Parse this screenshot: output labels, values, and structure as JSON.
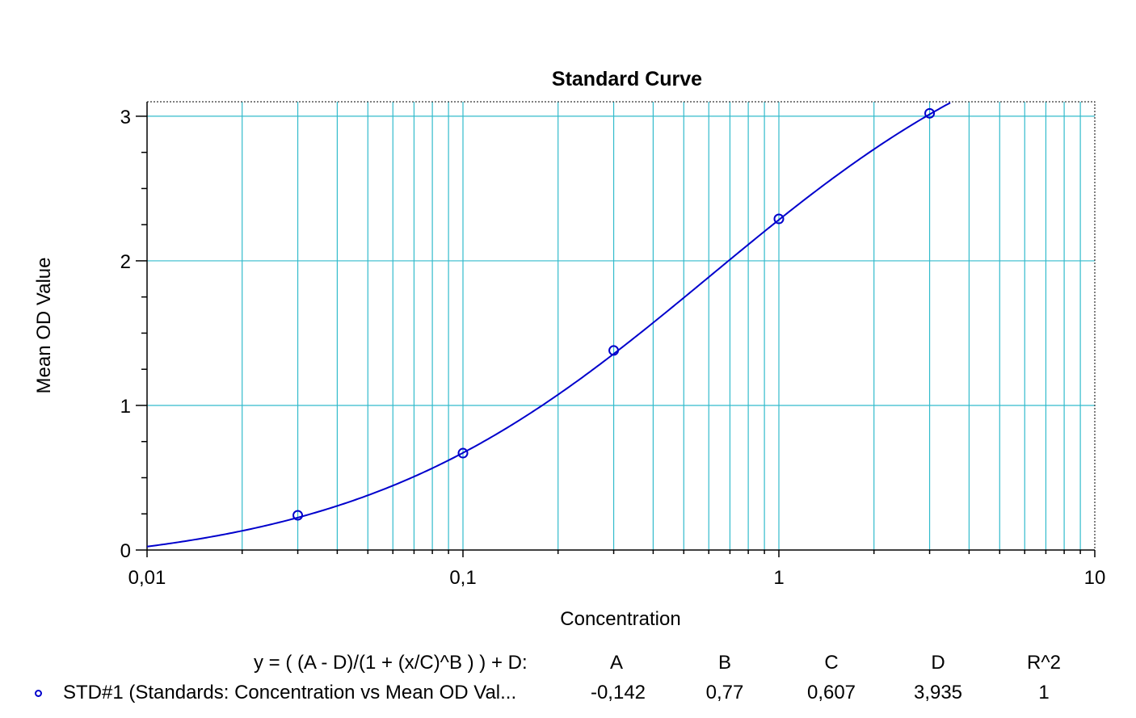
{
  "chart_data": {
    "type": "scatter",
    "title": "Standard Curve",
    "xlabel": "Concentration",
    "ylabel": "Mean OD Value",
    "x_scale": "log",
    "xlim": [
      0.01,
      10
    ],
    "ylim": [
      0,
      3.1
    ],
    "x_ticks": [
      {
        "value": 0.01,
        "label": "0,01"
      },
      {
        "value": 0.1,
        "label": "0,1"
      },
      {
        "value": 1,
        "label": "1"
      },
      {
        "value": 10,
        "label": "10"
      }
    ],
    "y_ticks": [
      {
        "value": 0,
        "label": "0"
      },
      {
        "value": 1,
        "label": "1"
      },
      {
        "value": 2,
        "label": "2"
      },
      {
        "value": 3,
        "label": "3"
      }
    ],
    "grid": true,
    "series": [
      {
        "name": "STD#1 (Standards: Concentration vs Mean OD Val...",
        "color": "#0000cc",
        "points": [
          {
            "x": 0.03,
            "y": 0.24
          },
          {
            "x": 0.1,
            "y": 0.67
          },
          {
            "x": 0.3,
            "y": 1.38
          },
          {
            "x": 1,
            "y": 2.29
          },
          {
            "x": 3,
            "y": 3.02
          }
        ],
        "fit": {
          "model": "4PL",
          "A": -0.142,
          "B": 0.77,
          "C": 0.607,
          "D": 3.935
        }
      }
    ],
    "colors": {
      "curve": "#0000cc",
      "grid": "#33bbcc",
      "axis": "#000000"
    }
  },
  "legend": {
    "equation": "y = ( (A - D)/(1 + (x/C)^B ) ) + D:",
    "headers": [
      "A",
      "B",
      "C",
      "D",
      "R^2"
    ],
    "row": {
      "label": "STD#1 (Standards: Concentration vs Mean OD Val...",
      "values": [
        "-0,142",
        "0,77",
        "0,607",
        "3,935",
        "1"
      ]
    }
  }
}
